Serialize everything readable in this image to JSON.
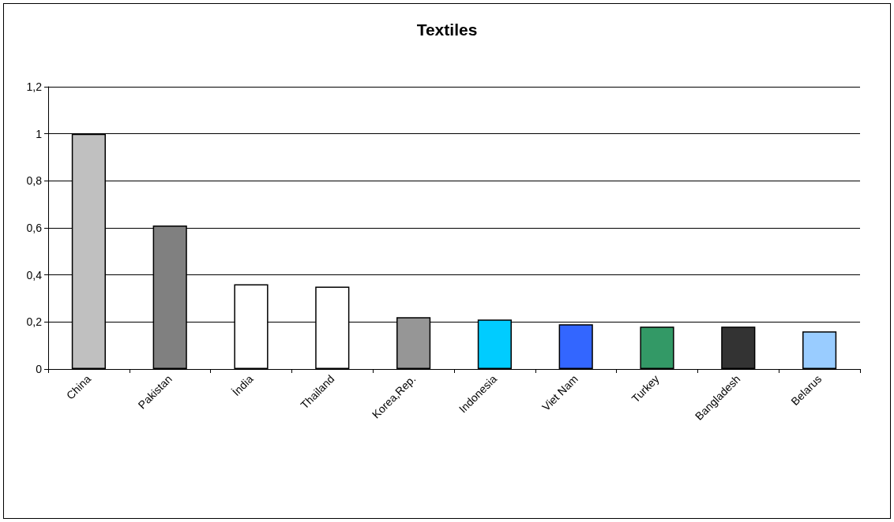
{
  "chart_data": {
    "type": "bar",
    "title": "Textiles",
    "categories": [
      "China",
      "Pakistan",
      "İndia",
      "Thailand",
      "Korea,Rep.",
      "Indonesia",
      "Viet Nam",
      "Turkey",
      "Bangladesh",
      "Belarus"
    ],
    "values": [
      1.0,
      0.61,
      0.36,
      0.35,
      0.22,
      0.21,
      0.19,
      0.18,
      0.18,
      0.16
    ],
    "colors": [
      "#c0c0c0",
      "#808080",
      "#ffffff",
      "#ffffff",
      "#969696",
      "#00ccff",
      "#3366ff",
      "#339966",
      "#333333",
      "#99ccff"
    ],
    "ylim": [
      0,
      1.2
    ],
    "yticks": [
      0,
      {
        "value": 0.2,
        "label": "0,2"
      },
      {
        "value": 0.4,
        "label": "0,4"
      },
      {
        "value": 0.6,
        "label": "0,6"
      },
      {
        "value": 0.8,
        "label": "0,8"
      },
      1,
      {
        "value": 1.2,
        "label": "1,2"
      }
    ],
    "grid": "y"
  }
}
